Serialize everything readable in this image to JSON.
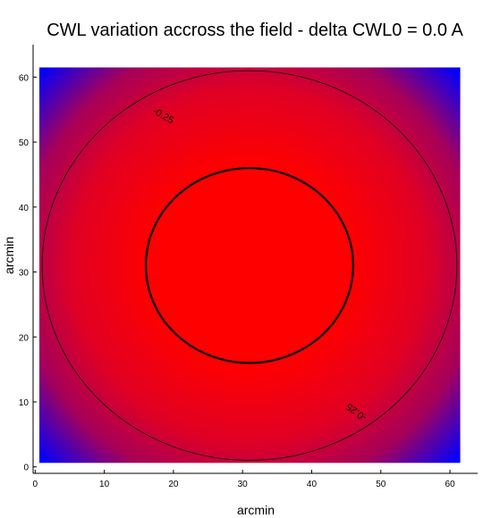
{
  "chart_data": {
    "type": "heatmap",
    "title": "CWL variation accross the field - delta CWL0 = 0.0 A",
    "xlabel": "arcmin",
    "ylabel": "arcmin",
    "xlim": [
      -0.3,
      64.0
    ],
    "ylim": [
      -1.0,
      65.0
    ],
    "data_extent": {
      "x": [
        0.6,
        61.5
      ],
      "y": [
        0.6,
        61.5
      ]
    },
    "center": {
      "x": 31.0,
      "y": 31.0
    },
    "x_ticks": [
      0,
      10,
      20,
      30,
      40,
      50,
      60
    ],
    "y_ticks": [
      0,
      10,
      20,
      30,
      40,
      50,
      60
    ],
    "colormap": {
      "high": "#ff0000",
      "low": "#0000ff",
      "field_radius_at_blue": 42.5
    },
    "contours": [
      {
        "radius": 15.0,
        "level": "",
        "line": "bold"
      },
      {
        "radius": 30.0,
        "level": "-0.25",
        "line": "thin"
      }
    ],
    "contour_labels": [
      {
        "text": "-0.25",
        "x": 18.5,
        "y": 54.0
      },
      {
        "text": "-0.25",
        "x": 46.5,
        "y": 8.5
      }
    ],
    "grid": false,
    "legend": "none"
  }
}
